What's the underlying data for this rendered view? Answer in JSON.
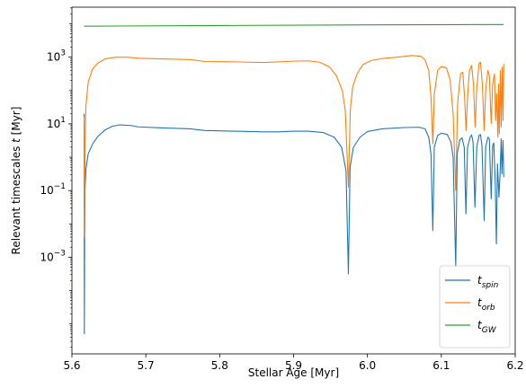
{
  "chart_data": {
    "type": "line",
    "xlabel": "Stellar Age [Myr]",
    "ylabel_prefix": "Relevant timescales ",
    "ylabel_var": "t",
    "ylabel_suffix": " [Myr]",
    "xlim": [
      5.6,
      6.2
    ],
    "ylim_log10": [
      -5.9,
      4.5
    ],
    "yscale": "log",
    "grid": false,
    "legend_position": "lower right",
    "x_ticks": [
      {
        "value": 5.6,
        "label": "5.6"
      },
      {
        "value": 5.7,
        "label": "5.7"
      },
      {
        "value": 5.8,
        "label": "5.8"
      },
      {
        "value": 5.9,
        "label": "5.9"
      },
      {
        "value": 6.0,
        "label": "6.0"
      },
      {
        "value": 6.1,
        "label": "6.1"
      },
      {
        "value": 6.2,
        "label": "6.2"
      }
    ],
    "y_ticks": [
      {
        "exp": -3,
        "base": "10",
        "power": "−3"
      },
      {
        "exp": -1,
        "base": "10",
        "power": "−1"
      },
      {
        "exp": 1,
        "base": "10",
        "power": "1"
      },
      {
        "exp": 3,
        "base": "10",
        "power": "3"
      }
    ],
    "series": [
      {
        "name": "t_spin",
        "label_main": "t",
        "label_sub": "spin",
        "color": "#1f77b4",
        "points": [
          [
            5.6165,
            1.3
          ],
          [
            5.6168,
            -5.3
          ],
          [
            5.6172,
            -2.4
          ],
          [
            5.6176,
            -1.0
          ],
          [
            5.619,
            -0.35
          ],
          [
            5.622,
            0.1
          ],
          [
            5.628,
            0.4
          ],
          [
            5.635,
            0.62
          ],
          [
            5.645,
            0.82
          ],
          [
            5.655,
            0.93
          ],
          [
            5.665,
            0.97
          ],
          [
            5.68,
            0.95
          ],
          [
            5.69,
            0.91
          ],
          [
            5.72,
            0.88
          ],
          [
            5.76,
            0.85
          ],
          [
            5.78,
            0.8
          ],
          [
            5.8,
            0.79
          ],
          [
            5.82,
            0.78
          ],
          [
            5.84,
            0.77
          ],
          [
            5.86,
            0.76
          ],
          [
            5.88,
            0.76
          ],
          [
            5.9,
            0.78
          ],
          [
            5.92,
            0.78
          ],
          [
            5.94,
            0.74
          ],
          [
            5.955,
            0.6
          ],
          [
            5.965,
            0.3
          ],
          [
            5.971,
            -0.4
          ],
          [
            5.9742,
            -3.5
          ],
          [
            5.9765,
            -0.3
          ],
          [
            5.981,
            0.3
          ],
          [
            5.99,
            0.6
          ],
          [
            6.0,
            0.77
          ],
          [
            6.02,
            0.85
          ],
          [
            6.05,
            0.89
          ],
          [
            6.07,
            0.9
          ],
          [
            6.078,
            0.85
          ],
          [
            6.083,
            0.6
          ],
          [
            6.086,
            0.1
          ],
          [
            6.0885,
            -2.2
          ],
          [
            6.0905,
            0.3
          ],
          [
            6.095,
            0.65
          ],
          [
            6.1,
            0.72
          ],
          [
            6.108,
            0.68
          ],
          [
            6.113,
            0.45
          ],
          [
            6.116,
            0.0
          ],
          [
            6.1195,
            -3.3
          ],
          [
            6.1215,
            0.1
          ],
          [
            6.125,
            0.52
          ],
          [
            6.128,
            0.58
          ],
          [
            6.131,
            0.3
          ],
          [
            6.1333,
            -1.7
          ],
          [
            6.1355,
            0.3
          ],
          [
            6.139,
            0.6
          ],
          [
            6.141,
            0.67
          ],
          [
            6.143,
            0.45
          ],
          [
            6.1455,
            -1.5
          ],
          [
            6.148,
            0.3
          ],
          [
            6.151,
            0.65
          ],
          [
            6.153,
            0.68
          ],
          [
            6.155,
            0.35
          ],
          [
            6.158,
            -1.9
          ],
          [
            6.16,
            0.3
          ],
          [
            6.163,
            0.6
          ],
          [
            6.165,
            0.55
          ],
          [
            6.1675,
            -1.25
          ],
          [
            6.1695,
            0.35
          ],
          [
            6.171,
            0.43
          ],
          [
            6.173,
            -0.8
          ],
          [
            6.1745,
            -2.6
          ],
          [
            6.176,
            -0.2
          ],
          [
            6.178,
            -1.2
          ],
          [
            6.1795,
            -0.5
          ],
          [
            6.181,
            0.55
          ],
          [
            6.182,
            -0.5
          ],
          [
            6.1835,
            0.5
          ],
          [
            6.1845,
            -0.6
          ]
        ]
      },
      {
        "name": "t_orb",
        "label_main": "t",
        "label_sub": "orb",
        "color": "#ff7f0e",
        "points": [
          [
            5.6165,
            1.2
          ],
          [
            5.6169,
            -2.4
          ],
          [
            5.6173,
            -1.0
          ],
          [
            5.6178,
            0.6
          ],
          [
            5.619,
            1.55
          ],
          [
            5.622,
            2.25
          ],
          [
            5.628,
            2.65
          ],
          [
            5.635,
            2.82
          ],
          [
            5.645,
            2.95
          ],
          [
            5.66,
            3.0
          ],
          [
            5.675,
            3.0
          ],
          [
            5.69,
            2.97
          ],
          [
            5.72,
            2.95
          ],
          [
            5.76,
            2.93
          ],
          [
            5.78,
            2.87
          ],
          [
            5.82,
            2.86
          ],
          [
            5.84,
            2.85
          ],
          [
            5.86,
            2.84
          ],
          [
            5.88,
            2.86
          ],
          [
            5.9,
            2.88
          ],
          [
            5.92,
            2.89
          ],
          [
            5.935,
            2.85
          ],
          [
            5.948,
            2.72
          ],
          [
            5.958,
            2.45
          ],
          [
            5.966,
            2.0
          ],
          [
            5.97,
            1.4
          ],
          [
            5.9742,
            -0.9
          ],
          [
            5.9768,
            1.4
          ],
          [
            5.98,
            2.1
          ],
          [
            5.986,
            2.5
          ],
          [
            5.994,
            2.78
          ],
          [
            6.005,
            2.9
          ],
          [
            6.02,
            2.96
          ],
          [
            6.04,
            3.0
          ],
          [
            6.06,
            3.05
          ],
          [
            6.072,
            3.03
          ],
          [
            6.078,
            2.92
          ],
          [
            6.083,
            2.6
          ],
          [
            6.086,
            1.8
          ],
          [
            6.0885,
            0.4
          ],
          [
            6.0905,
            1.9
          ],
          [
            6.095,
            2.6
          ],
          [
            6.1,
            2.72
          ],
          [
            6.107,
            2.68
          ],
          [
            6.112,
            2.3
          ],
          [
            6.116,
            1.3
          ],
          [
            6.1195,
            -1.0
          ],
          [
            6.122,
            1.6
          ],
          [
            6.126,
            2.5
          ],
          [
            6.129,
            2.55
          ],
          [
            6.1315,
            1.8
          ],
          [
            6.1335,
            0.8
          ],
          [
            6.1355,
            1.8
          ],
          [
            6.138,
            2.6
          ],
          [
            6.141,
            2.75
          ],
          [
            6.1435,
            2.2
          ],
          [
            6.1458,
            0.9
          ],
          [
            6.1478,
            2.0
          ],
          [
            6.151,
            2.8
          ],
          [
            6.153,
            2.85
          ],
          [
            6.1555,
            2.2
          ],
          [
            6.158,
            0.8
          ],
          [
            6.16,
            2.0
          ],
          [
            6.163,
            2.6
          ],
          [
            6.165,
            2.45
          ],
          [
            6.1675,
            1.0
          ],
          [
            6.1695,
            2.2
          ],
          [
            6.172,
            2.5
          ],
          [
            6.1735,
            1.1
          ],
          [
            6.175,
            1.9
          ],
          [
            6.1765,
            0.6
          ],
          [
            6.1775,
            2.2
          ],
          [
            6.1785,
            0.7
          ],
          [
            6.18,
            2.6
          ],
          [
            6.181,
            0.9
          ],
          [
            6.1825,
            2.7
          ],
          [
            6.1835,
            1.1
          ],
          [
            6.1845,
            2.8
          ]
        ]
      },
      {
        "name": "t_GW",
        "label_main": "t",
        "label_sub": "GW",
        "color": "#2ca02c",
        "points": [
          [
            5.6165,
            3.93
          ],
          [
            5.8,
            3.95
          ],
          [
            6.0,
            3.97
          ],
          [
            6.1845,
            3.98
          ]
        ]
      }
    ]
  }
}
